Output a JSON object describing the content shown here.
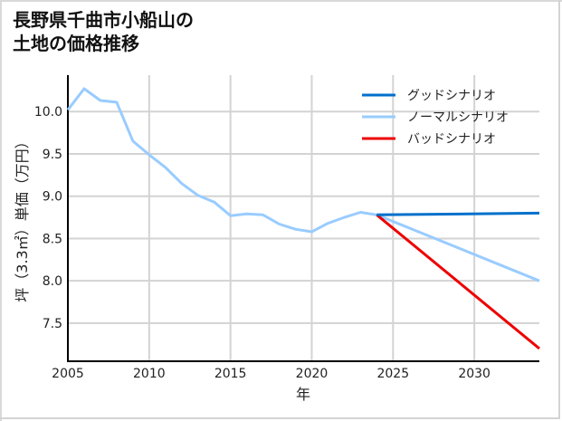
{
  "title": "長野県千曲市小船山の\n土地の価格推移",
  "chart_data": {
    "type": "line",
    "title": "長野県千曲市小船山の土地の価格推移",
    "xlabel": "年",
    "ylabel": "坪（3.3㎡）単価（万円）",
    "xlim": [
      2005,
      2034
    ],
    "ylim": [
      7.05,
      10.43
    ],
    "xticks": [
      2005,
      2010,
      2015,
      2020,
      2025,
      2030
    ],
    "yticks": [
      7.5,
      8.0,
      8.5,
      9.0,
      9.5,
      10.0
    ],
    "ytick_labels": [
      "7.5",
      "8.0",
      "8.5",
      "9.0",
      "9.5",
      "10.0"
    ],
    "grid": true,
    "legend_position": "upper right",
    "series": [
      {
        "name": "グッドシナリオ",
        "color": "#0070cc",
        "x": [
          2024,
          2034
        ],
        "values": [
          8.78,
          8.8
        ]
      },
      {
        "name": "ノーマルシナリオ",
        "color": "#99ccff",
        "x": [
          2005,
          2006,
          2007,
          2008,
          2009,
          2010,
          2011,
          2012,
          2013,
          2014,
          2015,
          2016,
          2017,
          2018,
          2019,
          2020,
          2021,
          2022,
          2023,
          2024,
          2034
        ],
        "values": [
          10.02,
          10.27,
          10.13,
          10.11,
          9.65,
          9.49,
          9.34,
          9.15,
          9.01,
          8.93,
          8.77,
          8.79,
          8.78,
          8.67,
          8.61,
          8.58,
          8.68,
          8.75,
          8.81,
          8.78,
          8.0
        ]
      },
      {
        "name": "バッドシナリオ",
        "color": "#ee0000",
        "x": [
          2024,
          2034
        ],
        "values": [
          8.78,
          7.2
        ]
      }
    ]
  }
}
